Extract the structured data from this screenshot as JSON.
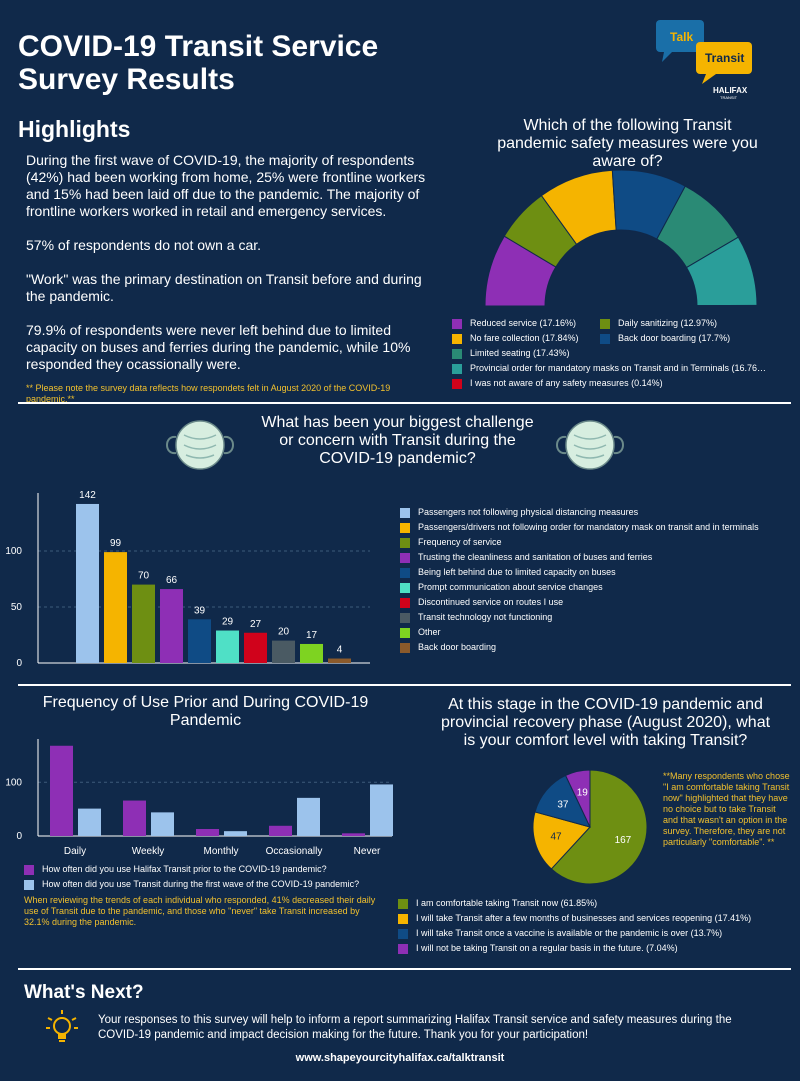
{
  "title": "COVID-19 Transit Service Survey Results",
  "logo": {
    "talk": "Talk",
    "transit": "Transit",
    "brand": "HALIFAX",
    "sub": "TRANSIT"
  },
  "highlights": {
    "heading": "Highlights",
    "p1": "During the first wave of COVID-19, the majority of respondents (42%) had been working from home, 25% were frontline workers and 15% had been laid off due to the pandemic. The majority of frontline workers worked in retail and emergency services.",
    "p2": "57% of respondents do not own a car.",
    "p3": "\"Work\" was the primary destination on Transit before and during the pandemic.",
    "p4": "79.9% of respondents were never left behind due to limited capacity on buses and ferries during the pandemic, while 10% responded they ocassionally were.",
    "note": "** Please note the survey data reflects how respondets felt in August 2020 of the COVID-19 pandemic.**"
  },
  "colors": {
    "background": "#10294a",
    "accent": "#f2c12e"
  },
  "chart_data": [
    {
      "type": "pie",
      "subtype": "semi-donut",
      "title": "Which of the following Transit pandemic safety measures were you aware of?",
      "slices": [
        {
          "label": "Reduced service (17.16%)",
          "value": 17.16,
          "color": "#8e2fb5"
        },
        {
          "label": "Daily sanitizing (12.97%)",
          "value": 12.97,
          "color": "#6e8f12"
        },
        {
          "label": "No fare collection (17.84%)",
          "value": 17.84,
          "color": "#f5b400"
        },
        {
          "label": "Back door boarding (17.7%)",
          "value": 17.7,
          "color": "#0f4b85"
        },
        {
          "label": "Limited seating (17.43%)",
          "value": 17.43,
          "color": "#2a8a75"
        },
        {
          "label": "Provincial order for mandatory masks on Transit and in Terminals (16.76…",
          "value": 16.76,
          "color": "#2a9e9a"
        },
        {
          "label": "I was not aware of any safety measures (0.14%)",
          "value": 0.14,
          "color": "#d0021b"
        }
      ],
      "legend_position": "bottom"
    },
    {
      "type": "bar",
      "title": "What has been your biggest challenge or concern with Transit during the COVID-19 pandemic?",
      "categories": [
        "Passengers not following physical distancing measures",
        "Passengers/drivers not following order for mandatory mask on transit and in terminals",
        "Frequency of service",
        "Trusting the cleanliness and sanitation of buses and ferries",
        "Being left behind due to limited capacity on buses",
        "Prompt communication about service changes",
        "Discontinued service on routes I use",
        "Transit technology not functioning",
        "Other",
        "Back door boarding"
      ],
      "values": [
        142,
        99,
        70,
        66,
        39,
        29,
        27,
        20,
        17,
        4
      ],
      "colors": [
        "#9cc3ec",
        "#f5b400",
        "#6e8f12",
        "#8e2fb5",
        "#0f4b85",
        "#4fe0c6",
        "#d0021b",
        "#4a5a63",
        "#7ed321",
        "#8b5a2b"
      ],
      "yticks": [
        "0",
        "50",
        "100"
      ],
      "ylim": [
        0,
        150
      ],
      "grid": true,
      "legend_position": "right"
    },
    {
      "type": "bar",
      "title": "Frequency of Use Prior and During COVID-19 Pandemic",
      "categories": [
        "Daily",
        "Weekly",
        "Monthly",
        "Occasionally",
        "Never"
      ],
      "series": [
        {
          "name": "How often did you use Halifax Transit prior to the COVID-19 pandemic?",
          "values": [
            168,
            66,
            13,
            19,
            5
          ],
          "color": "#8e2fb5"
        },
        {
          "name": "How often did you use Transit during the first wave of the COVID-19 pandemic?",
          "values": [
            51,
            44,
            9,
            71,
            96
          ],
          "color": "#9cc3ec"
        }
      ],
      "yticks": [
        "0",
        "100"
      ],
      "ylim": [
        0,
        175
      ],
      "grid": true,
      "legend_position": "bottom"
    },
    {
      "type": "pie",
      "title": "At this stage in the COVID-19 pandemic and provincial recovery phase (August 2020), what is your comfort level with taking Transit?",
      "slices": [
        {
          "label": "I am comfortable taking Transit now (61.85%)",
          "value": 167,
          "display": "167",
          "color": "#6e8f12"
        },
        {
          "label": "I will take Transit after a few months of businesses and services reopening (17.41%)",
          "value": 47,
          "display": "47",
          "color": "#f5b400"
        },
        {
          "label": "I will take Transit once a vaccine is available or the pandemic is over (13.7%)",
          "value": 37,
          "display": "37",
          "color": "#0f4b85"
        },
        {
          "label": "I will not be taking Transit on a regular basis in the future. (7.04%)",
          "value": 19,
          "display": "19",
          "color": "#8e2fb5"
        }
      ],
      "legend_position": "bottom"
    }
  ],
  "freq_note": "When reviewing the trends of each individual who responded, 41% decreased their daily use of Transit due to the pandemic, and those who \"never\" take Transit increased by 32.1% during the pandemic.",
  "comfort_note": "**Many respondents who chose \"I am comfortable taking Transit now\" highlighted that they have no choice but to take Transit and that wasn't an option in the survey. Therefore, they are not particularly \"comfortable\". **",
  "next": {
    "heading": "What's Next?",
    "text": "Your responses to this survey will help to inform a report summarizing Halifax Transit service and safety measures during the COVID-19 pandemic and impact decision making for the future. Thank you for your participation!",
    "url": "www.shapeyourcityhalifax.ca/talktransit"
  }
}
